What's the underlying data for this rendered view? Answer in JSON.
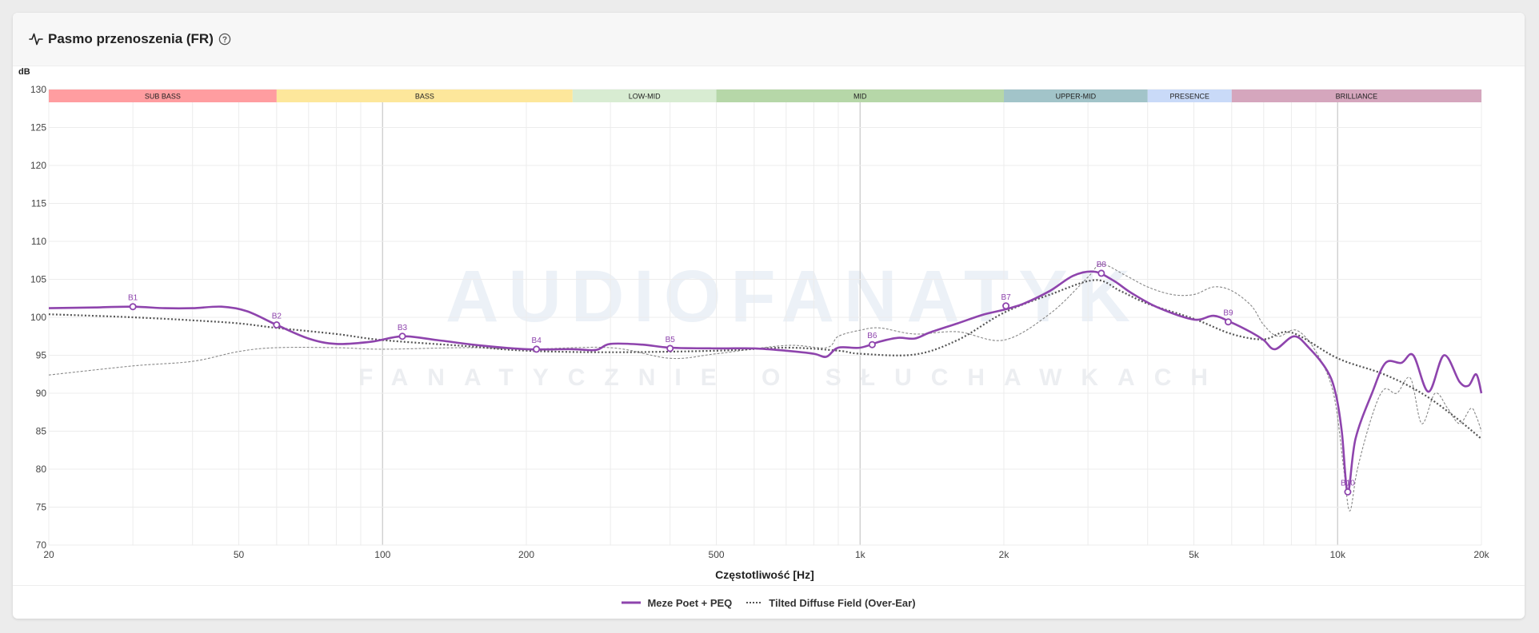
{
  "header": {
    "title": "Pasmo przenoszenia (FR)"
  },
  "colors": {
    "series_main": "#8e44ad",
    "series_target": "#555555",
    "series_thin": "#888888"
  },
  "bands": [
    {
      "name": "SUB BASS",
      "from": 20,
      "to": 60,
      "color": "#ff9da0"
    },
    {
      "name": "BASS",
      "from": 60,
      "to": 250,
      "color": "#fde79b"
    },
    {
      "name": "LOW-MID",
      "from": 250,
      "to": 500,
      "color": "#d8ecd2"
    },
    {
      "name": "MID",
      "from": 500,
      "to": 2000,
      "color": "#b6d7a8"
    },
    {
      "name": "UPPER-MID",
      "from": 2000,
      "to": 4000,
      "color": "#a2c4c9"
    },
    {
      "name": "PRESENCE",
      "from": 4000,
      "to": 6000,
      "color": "#c9daf8"
    },
    {
      "name": "BRILLIANCE",
      "from": 6000,
      "to": 20000,
      "color": "#d5a6bd"
    }
  ],
  "chart_data": {
    "type": "line",
    "ylabel": "dB",
    "xlabel": "Częstotliwość [Hz]",
    "xscale": "log",
    "xlim": [
      20,
      20000
    ],
    "ylim": [
      70,
      130
    ],
    "x_ticks": [
      {
        "v": 20,
        "label": "20"
      },
      {
        "v": 50,
        "label": "50"
      },
      {
        "v": 100,
        "label": "100"
      },
      {
        "v": 200,
        "label": "200"
      },
      {
        "v": 500,
        "label": "500"
      },
      {
        "v": 1000,
        "label": "1k"
      },
      {
        "v": 2000,
        "label": "2k"
      },
      {
        "v": 5000,
        "label": "5k"
      },
      {
        "v": 10000,
        "label": "10k"
      },
      {
        "v": 20000,
        "label": "20k"
      }
    ],
    "y_ticks": [
      130,
      125,
      120,
      115,
      110,
      105,
      100,
      95,
      90,
      85,
      80,
      75,
      70
    ],
    "grid": true,
    "legend_position": "bottom-center",
    "series": [
      {
        "name": "Meze Poet + PEQ",
        "style": "solid",
        "points": [
          [
            20,
            101.2
          ],
          [
            25,
            101.3
          ],
          [
            30,
            101.4
          ],
          [
            35,
            101.2
          ],
          [
            40,
            101.2
          ],
          [
            46,
            101.4
          ],
          [
            52,
            100.8
          ],
          [
            60,
            99.0
          ],
          [
            70,
            97.2
          ],
          [
            80,
            96.5
          ],
          [
            95,
            96.8
          ],
          [
            110,
            97.5
          ],
          [
            130,
            97.0
          ],
          [
            160,
            96.3
          ],
          [
            200,
            95.8
          ],
          [
            250,
            95.8
          ],
          [
            280,
            95.7
          ],
          [
            300,
            96.5
          ],
          [
            350,
            96.4
          ],
          [
            400,
            96.0
          ],
          [
            500,
            95.9
          ],
          [
            600,
            95.9
          ],
          [
            700,
            95.6
          ],
          [
            800,
            95.2
          ],
          [
            850,
            94.8
          ],
          [
            900,
            96.0
          ],
          [
            1000,
            96.0
          ],
          [
            1100,
            96.8
          ],
          [
            1200,
            97.3
          ],
          [
            1300,
            97.2
          ],
          [
            1400,
            98.0
          ],
          [
            1600,
            99.2
          ],
          [
            1800,
            100.3
          ],
          [
            2000,
            101.0
          ],
          [
            2200,
            101.8
          ],
          [
            2500,
            103.5
          ],
          [
            2800,
            105.5
          ],
          [
            3100,
            106.0
          ],
          [
            3400,
            104.8
          ],
          [
            3700,
            103.2
          ],
          [
            4200,
            101.3
          ],
          [
            5000,
            99.7
          ],
          [
            5500,
            100.2
          ],
          [
            6000,
            99.3
          ],
          [
            6600,
            98.0
          ],
          [
            7000,
            97.0
          ],
          [
            7400,
            95.8
          ],
          [
            8100,
            97.5
          ],
          [
            8700,
            96.0
          ],
          [
            9500,
            93.0
          ],
          [
            9900,
            90.0
          ],
          [
            10200,
            85.0
          ],
          [
            10500,
            77.0
          ],
          [
            10900,
            84.0
          ],
          [
            11800,
            90.0
          ],
          [
            12600,
            94.0
          ],
          [
            13600,
            94.0
          ],
          [
            14400,
            95.0
          ],
          [
            15500,
            90.2
          ],
          [
            16700,
            95.0
          ],
          [
            18000,
            91.5
          ],
          [
            18800,
            91.0
          ],
          [
            19500,
            92.5
          ],
          [
            20000,
            90.0
          ]
        ],
        "markers": [
          {
            "label": "B1",
            "x": 30,
            "y": 101.4
          },
          {
            "label": "B2",
            "x": 60,
            "y": 99.0
          },
          {
            "label": "B3",
            "x": 110,
            "y": 97.5
          },
          {
            "label": "B4",
            "x": 210,
            "y": 95.8
          },
          {
            "label": "B5",
            "x": 400,
            "y": 95.9
          },
          {
            "label": "B6",
            "x": 1060,
            "y": 96.4
          },
          {
            "label": "B7",
            "x": 2020,
            "y": 101.5
          },
          {
            "label": "B8",
            "x": 3200,
            "y": 105.8
          },
          {
            "label": "B9",
            "x": 5900,
            "y": 99.4
          },
          {
            "label": "B10",
            "x": 10500,
            "y": 77.0
          }
        ]
      },
      {
        "name": "Tilted Diffuse Field (Over-Ear)",
        "style": "dotted",
        "points": [
          [
            20,
            100.4
          ],
          [
            30,
            100.0
          ],
          [
            40,
            99.6
          ],
          [
            50,
            99.2
          ],
          [
            60,
            98.6
          ],
          [
            80,
            97.8
          ],
          [
            100,
            97.0
          ],
          [
            150,
            96.2
          ],
          [
            200,
            95.6
          ],
          [
            300,
            95.4
          ],
          [
            500,
            95.6
          ],
          [
            700,
            96.0
          ],
          [
            900,
            95.6
          ],
          [
            1000,
            95.2
          ],
          [
            1300,
            95.1
          ],
          [
            1600,
            97.0
          ],
          [
            2000,
            100.6
          ],
          [
            2500,
            103.0
          ],
          [
            3100,
            104.9
          ],
          [
            3500,
            103.5
          ],
          [
            4000,
            101.8
          ],
          [
            5000,
            99.8
          ],
          [
            6000,
            97.8
          ],
          [
            7000,
            97.1
          ],
          [
            8000,
            98.0
          ],
          [
            10000,
            94.6
          ],
          [
            12500,
            92.5
          ],
          [
            15000,
            90.0
          ],
          [
            17500,
            87.0
          ],
          [
            20000,
            84.0
          ]
        ]
      },
      {
        "name": "",
        "style": "thin-dashed",
        "points": [
          [
            20,
            92.4
          ],
          [
            30,
            93.6
          ],
          [
            40,
            94.2
          ],
          [
            50,
            95.5
          ],
          [
            60,
            96.0
          ],
          [
            80,
            96.0
          ],
          [
            100,
            95.8
          ],
          [
            150,
            96.0
          ],
          [
            200,
            95.8
          ],
          [
            300,
            96.0
          ],
          [
            400,
            94.6
          ],
          [
            500,
            95.2
          ],
          [
            700,
            96.3
          ],
          [
            850,
            96.0
          ],
          [
            900,
            97.5
          ],
          [
            1000,
            98.3
          ],
          [
            1100,
            98.6
          ],
          [
            1300,
            97.8
          ],
          [
            1600,
            98.1
          ],
          [
            2000,
            97.0
          ],
          [
            2500,
            100.5
          ],
          [
            3000,
            105.3
          ],
          [
            3200,
            107.0
          ],
          [
            3600,
            105.5
          ],
          [
            4000,
            104.0
          ],
          [
            4500,
            103.0
          ],
          [
            5000,
            103.0
          ],
          [
            5500,
            104.0
          ],
          [
            6000,
            103.5
          ],
          [
            6600,
            101.5
          ],
          [
            7000,
            99.0
          ],
          [
            7500,
            97.5
          ],
          [
            8200,
            98.3
          ],
          [
            9000,
            95.5
          ],
          [
            9800,
            90.0
          ],
          [
            10300,
            80.0
          ],
          [
            10600,
            74.5
          ],
          [
            11000,
            80.0
          ],
          [
            11800,
            87.0
          ],
          [
            12500,
            90.5
          ],
          [
            13300,
            90.0
          ],
          [
            14200,
            92.0
          ],
          [
            15000,
            86.0
          ],
          [
            16000,
            90.0
          ],
          [
            17000,
            88.0
          ],
          [
            18000,
            86.0
          ],
          [
            19000,
            88.0
          ],
          [
            19500,
            87.0
          ],
          [
            20000,
            85.0
          ]
        ]
      }
    ]
  },
  "watermark": {
    "main": "AUDIOFANATYK",
    "sub": "FANATYCZNIE O SŁUCHAWKACH"
  }
}
